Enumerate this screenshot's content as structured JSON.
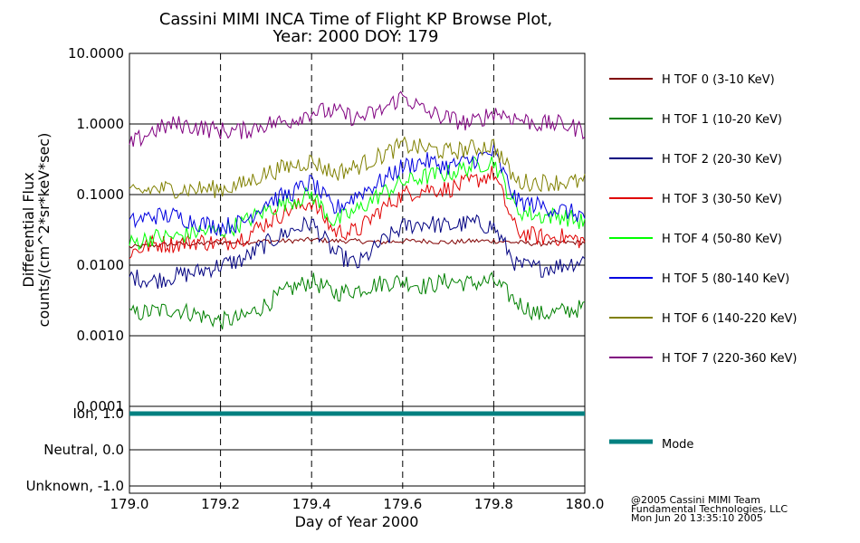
{
  "title_line1": "Cassini MIMI INCA Time of Flight KP Browse Plot,",
  "title_line2": "Year: 2000 DOY: 179",
  "credit": [
    "@2005 Cassini MIMI Team",
    "Fundamental Technologies, LLC",
    "Mon Jun 20 13:35:10 2005"
  ],
  "colors": {
    "mode": "#008080",
    "grid": "#000000"
  },
  "chart_data": [
    {
      "type": "line",
      "ylabel_line1": "Differential Flux",
      "ylabel_line2": "counts/(cm^2*sr*keV*sec)",
      "xlabel": "Day of Year 2000",
      "xlim": [
        179.0,
        180.0
      ],
      "ylim": [
        0.0001,
        10.0
      ],
      "yscale": "log",
      "xticks": [
        179.0,
        179.2,
        179.4,
        179.6,
        179.8,
        180.0
      ],
      "xtick_labels": [
        "179.0",
        "179.2",
        "179.4",
        "179.6",
        "179.8",
        "180.0"
      ],
      "yticks": [
        10.0,
        1.0,
        0.1,
        0.01,
        0.001,
        0.0001
      ],
      "ytick_labels": [
        "10.0000",
        "1.0000",
        "0.1000",
        "0.0100",
        "0.0010",
        "0.0001"
      ],
      "grid": "horizontal solid at decades, vertical dashed at x ticks",
      "legend_position": "right",
      "series": [
        {
          "name": "H TOF 0 (3-10 KeV)",
          "color": "#800000",
          "x": [
            179.0,
            179.05,
            179.1,
            179.15,
            179.2,
            179.25,
            179.3,
            179.35,
            179.4,
            179.45,
            179.5,
            179.55,
            179.6,
            179.65,
            179.7,
            179.75,
            179.8,
            179.85,
            179.9,
            179.95,
            180.0
          ],
          "y": [
            0.018,
            0.019,
            0.02,
            0.02,
            0.021,
            0.021,
            0.022,
            0.022,
            0.023,
            0.022,
            0.022,
            0.021,
            0.022,
            0.022,
            0.021,
            0.022,
            0.022,
            0.021,
            0.02,
            0.021,
            0.021
          ]
        },
        {
          "name": "H TOF 1 (10-20 KeV)",
          "color": "#008000",
          "x": [
            179.0,
            179.05,
            179.1,
            179.15,
            179.2,
            179.25,
            179.3,
            179.35,
            179.4,
            179.45,
            179.5,
            179.55,
            179.6,
            179.65,
            179.7,
            179.75,
            179.8,
            179.85,
            179.9,
            179.95,
            180.0
          ],
          "y": [
            0.002,
            0.0022,
            0.0024,
            0.002,
            0.0016,
            0.0018,
            0.0028,
            0.0045,
            0.006,
            0.004,
            0.0045,
            0.0055,
            0.006,
            0.005,
            0.006,
            0.0055,
            0.006,
            0.003,
            0.002,
            0.0022,
            0.0025
          ]
        },
        {
          "name": "H TOF 2 (20-30 KeV)",
          "color": "#000080",
          "x": [
            179.0,
            179.05,
            179.1,
            179.15,
            179.2,
            179.25,
            179.3,
            179.35,
            179.4,
            179.45,
            179.5,
            179.55,
            179.6,
            179.65,
            179.7,
            179.75,
            179.8,
            179.85,
            179.9,
            179.95,
            180.0
          ],
          "y": [
            0.007,
            0.006,
            0.007,
            0.008,
            0.01,
            0.012,
            0.02,
            0.03,
            0.04,
            0.015,
            0.01,
            0.02,
            0.035,
            0.04,
            0.035,
            0.04,
            0.035,
            0.01,
            0.009,
            0.01,
            0.012
          ]
        },
        {
          "name": "H TOF 3 (30-50 KeV)",
          "color": "#e00000",
          "x": [
            179.0,
            179.05,
            179.1,
            179.15,
            179.2,
            179.25,
            179.3,
            179.35,
            179.4,
            179.45,
            179.5,
            179.55,
            179.6,
            179.65,
            179.7,
            179.75,
            179.8,
            179.85,
            179.9,
            179.95,
            180.0
          ],
          "y": [
            0.015,
            0.02,
            0.02,
            0.022,
            0.02,
            0.025,
            0.04,
            0.06,
            0.08,
            0.03,
            0.03,
            0.06,
            0.1,
            0.12,
            0.12,
            0.15,
            0.2,
            0.03,
            0.025,
            0.025,
            0.022
          ]
        },
        {
          "name": "H TOF 4 (50-80 KeV)",
          "color": "#00ff00",
          "x": [
            179.0,
            179.05,
            179.1,
            179.15,
            179.2,
            179.25,
            179.3,
            179.35,
            179.4,
            179.45,
            179.5,
            179.55,
            179.6,
            179.65,
            179.7,
            179.75,
            179.8,
            179.85,
            179.9,
            179.95,
            180.0
          ],
          "y": [
            0.02,
            0.025,
            0.025,
            0.03,
            0.03,
            0.04,
            0.06,
            0.08,
            0.1,
            0.04,
            0.06,
            0.1,
            0.15,
            0.18,
            0.2,
            0.25,
            0.3,
            0.06,
            0.05,
            0.05,
            0.04
          ]
        },
        {
          "name": "H TOF 5 (80-140 KeV)",
          "color": "#0000e0",
          "x": [
            179.0,
            179.05,
            179.1,
            179.15,
            179.2,
            179.25,
            179.3,
            179.35,
            179.4,
            179.45,
            179.5,
            179.55,
            179.6,
            179.65,
            179.7,
            179.75,
            179.8,
            179.85,
            179.9,
            179.95,
            180.0
          ],
          "y": [
            0.04,
            0.05,
            0.05,
            0.04,
            0.035,
            0.04,
            0.08,
            0.1,
            0.15,
            0.06,
            0.1,
            0.15,
            0.25,
            0.3,
            0.25,
            0.3,
            0.4,
            0.08,
            0.07,
            0.06,
            0.05
          ]
        },
        {
          "name": "H TOF 6 (140-220 KeV)",
          "color": "#808000",
          "x": [
            179.0,
            179.05,
            179.1,
            179.15,
            179.2,
            179.25,
            179.3,
            179.35,
            179.4,
            179.45,
            179.5,
            179.55,
            179.6,
            179.65,
            179.7,
            179.75,
            179.8,
            179.85,
            179.9,
            179.95,
            180.0
          ],
          "y": [
            0.1,
            0.12,
            0.12,
            0.12,
            0.12,
            0.14,
            0.2,
            0.25,
            0.3,
            0.2,
            0.25,
            0.35,
            0.5,
            0.45,
            0.4,
            0.45,
            0.5,
            0.15,
            0.15,
            0.15,
            0.15
          ]
        },
        {
          "name": "H TOF 7 (220-360 KeV)",
          "color": "#800080",
          "x": [
            179.0,
            179.05,
            179.1,
            179.15,
            179.2,
            179.25,
            179.3,
            179.35,
            179.4,
            179.45,
            179.5,
            179.55,
            179.6,
            179.65,
            179.7,
            179.75,
            179.8,
            179.85,
            179.9,
            179.95,
            180.0
          ],
          "y": [
            0.5,
            0.8,
            1.0,
            0.9,
            0.8,
            0.8,
            1.0,
            1.1,
            1.5,
            1.5,
            1.2,
            1.5,
            2.5,
            1.5,
            1.2,
            1.0,
            1.5,
            1.2,
            1.0,
            1.0,
            0.8
          ]
        }
      ]
    },
    {
      "type": "line",
      "xlabel": "Day of Year 2000",
      "xlim": [
        179.0,
        180.0
      ],
      "ylim": [
        -1.2,
        1.2
      ],
      "yticks": [
        1.0,
        0.0,
        -1.0
      ],
      "ytick_labels": [
        "Ion, 1.0",
        "Neutral, 0.0",
        "Unknown, -1.0"
      ],
      "grid": "horizontal solid at ticks, vertical dashed at x ticks",
      "legend_position": "right",
      "series": [
        {
          "name": "Mode",
          "color": "#008080",
          "x": [
            179.0,
            180.0
          ],
          "y": [
            1.0,
            1.0
          ]
        }
      ]
    }
  ]
}
